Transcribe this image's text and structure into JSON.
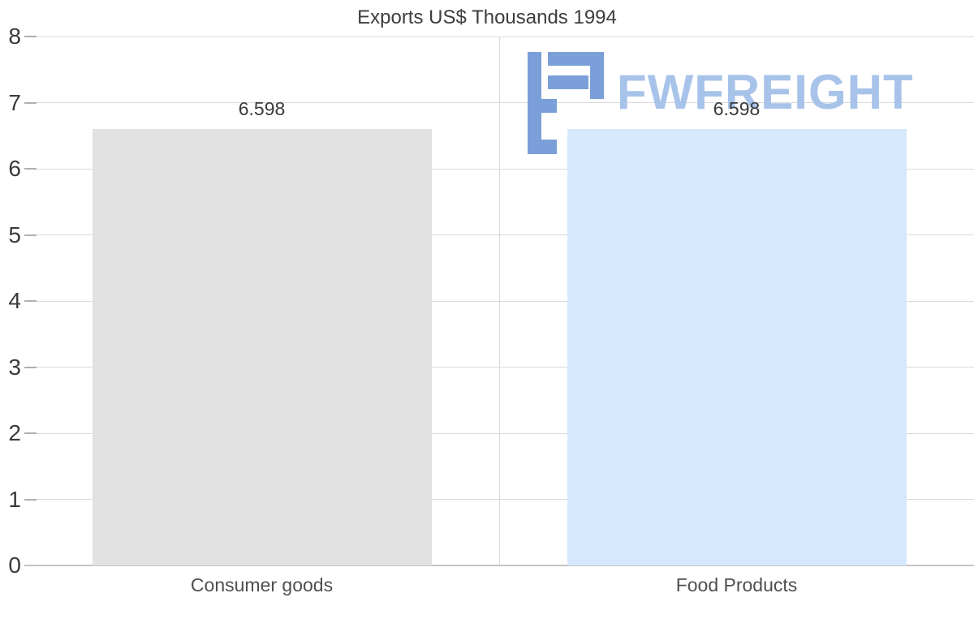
{
  "chart_data": {
    "type": "bar",
    "title": "Exports US$ Thousands 1994",
    "categories": [
      "Consumer goods",
      "Food Products"
    ],
    "values": [
      6.598,
      6.598
    ],
    "value_labels": [
      "6.598",
      "6.598"
    ],
    "bar_colors": [
      "#e2e2e2",
      "#d6e8fb"
    ],
    "xlabel": "",
    "ylabel": "",
    "ylim": [
      0,
      8
    ],
    "yticks": [
      0,
      1,
      2,
      3,
      4,
      5,
      6,
      7,
      8
    ],
    "grid": true,
    "legend": false
  },
  "watermark": {
    "text": "FWFREIGHT",
    "icon_color": "#7b9fd8",
    "text_color": "#a7c3e9"
  },
  "colors": {
    "background": "#ffffff",
    "gridline": "#dadada",
    "tick": "#b0b0b0",
    "axis_line": "#c4c4c4",
    "axis_text": "#3a3a3a",
    "value_label": "#3a3a3a",
    "category_label": "#4f4f4f"
  }
}
